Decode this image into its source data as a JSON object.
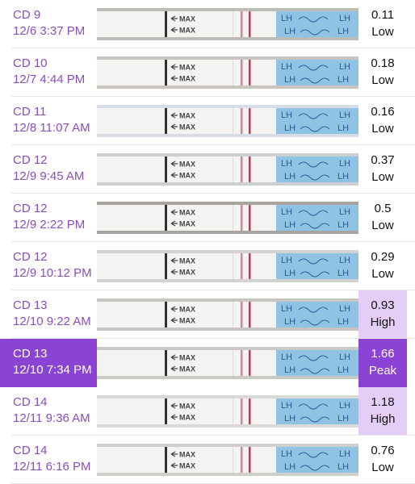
{
  "rows": [
    {
      "cycle_day": "CD 9",
      "datetime": "12/6 3:37 PM",
      "value": "0.11",
      "level": "Low"
    },
    {
      "cycle_day": "CD 10",
      "datetime": "12/7 4:44 PM",
      "value": "0.18",
      "level": "Low"
    },
    {
      "cycle_day": "CD 11",
      "datetime": "12/8 11:07 AM",
      "value": "0.16",
      "level": "Low"
    },
    {
      "cycle_day": "CD 12",
      "datetime": "12/9 9:45 AM",
      "value": "0.37",
      "level": "Low"
    },
    {
      "cycle_day": "CD 12",
      "datetime": "12/9 2:22 PM",
      "value": "0.5",
      "level": "Low"
    },
    {
      "cycle_day": "CD 12",
      "datetime": "12/9 10:12 PM",
      "value": "0.29",
      "level": "Low"
    },
    {
      "cycle_day": "CD 13",
      "datetime": "12/10 9:22 AM",
      "value": "0.93",
      "level": "High"
    },
    {
      "cycle_day": "CD 13",
      "datetime": "12/10 7:34 PM",
      "value": "1.66",
      "level": "Peak"
    },
    {
      "cycle_day": "CD 14",
      "datetime": "12/11 9:36 AM",
      "value": "1.18",
      "level": "High"
    },
    {
      "cycle_day": "CD 14",
      "datetime": "12/11 6:16 PM",
      "value": "0.76",
      "level": "Low"
    }
  ],
  "selected_row": 7,
  "strip_labels": {
    "max": "MAX",
    "brand": "LH"
  }
}
